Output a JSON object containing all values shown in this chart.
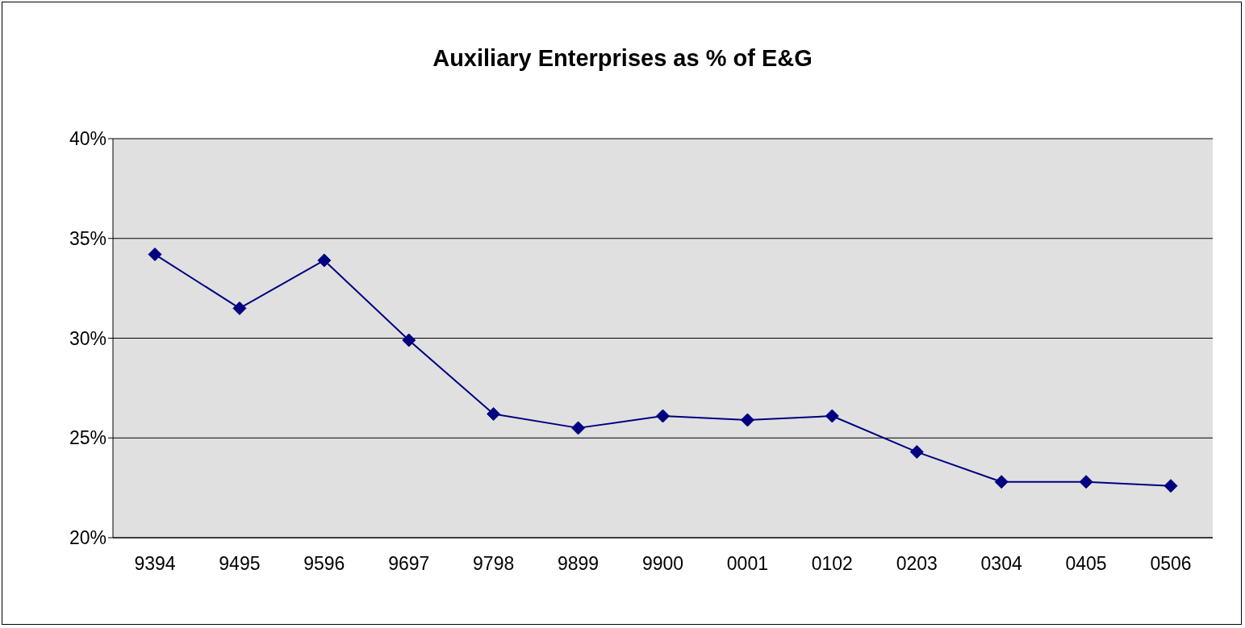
{
  "chart_data": {
    "type": "line",
    "title": "Auxiliary Enterprises as % of E&G",
    "categories": [
      "9394",
      "9495",
      "9596",
      "9697",
      "9798",
      "9899",
      "9900",
      "0001",
      "0102",
      "0203",
      "0304",
      "0405",
      "0506"
    ],
    "series": [
      {
        "color": "#000080",
        "values": [
          34.2,
          31.5,
          33.9,
          29.9,
          26.2,
          25.5,
          26.1,
          25.9,
          26.1,
          24.3,
          22.8,
          22.8,
          22.6
        ]
      }
    ],
    "ylim": [
      20,
      40
    ],
    "yticks": [
      {
        "value": 20,
        "label": "20%"
      },
      {
        "value": 25,
        "label": "25%"
      },
      {
        "value": 30,
        "label": "30%"
      },
      {
        "value": 35,
        "label": "35%"
      },
      {
        "value": 40,
        "label": "40%"
      }
    ],
    "grid": "y",
    "marker": "diamond",
    "line_style": "solid"
  }
}
